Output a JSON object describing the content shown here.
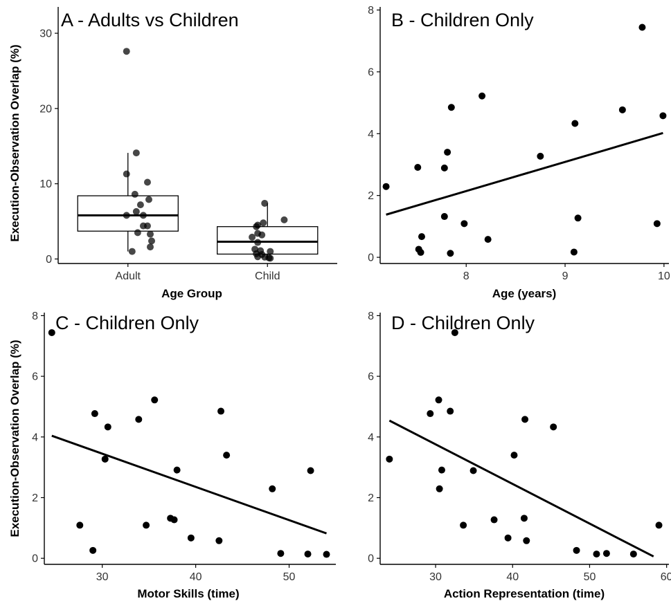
{
  "chart_data": [
    {
      "panel": "A",
      "type": "box",
      "title": "A - Adults vs Children",
      "xlabel": "Age Group",
      "ylabel": "Execution-Observation Overlap (%)",
      "categories": [
        "Adult",
        "Child"
      ],
      "ylim": [
        -0.6,
        33.5
      ],
      "yticks": [
        0,
        10,
        20,
        30
      ],
      "boxes": [
        {
          "category": "Adult",
          "q1": 3.7,
          "median": 5.8,
          "q3": 8.4,
          "whisker_low": 1.0,
          "whisker_high": 14.1
        },
        {
          "category": "Child",
          "q1": 0.65,
          "median": 2.3,
          "q3": 4.3,
          "whisker_low": 0.1,
          "whisker_high": 7.4
        }
      ],
      "points": [
        {
          "category": "Adult",
          "jitter": -0.01,
          "y": 27.6
        },
        {
          "category": "Adult",
          "jitter": 0.06,
          "y": 14.1
        },
        {
          "category": "Adult",
          "jitter": -0.01,
          "y": 11.3
        },
        {
          "category": "Adult",
          "jitter": 0.14,
          "y": 10.2
        },
        {
          "category": "Adult",
          "jitter": 0.05,
          "y": 8.6
        },
        {
          "category": "Adult",
          "jitter": 0.15,
          "y": 7.9
        },
        {
          "category": "Adult",
          "jitter": 0.09,
          "y": 7.2
        },
        {
          "category": "Adult",
          "jitter": 0.06,
          "y": 6.3
        },
        {
          "category": "Adult",
          "jitter": -0.01,
          "y": 5.8
        },
        {
          "category": "Adult",
          "jitter": 0.11,
          "y": 5.8
        },
        {
          "category": "Adult",
          "jitter": 0.11,
          "y": 4.4
        },
        {
          "category": "Adult",
          "jitter": 0.14,
          "y": 4.4
        },
        {
          "category": "Adult",
          "jitter": 0.07,
          "y": 3.5
        },
        {
          "category": "Adult",
          "jitter": 0.16,
          "y": 3.3
        },
        {
          "category": "Adult",
          "jitter": 0.17,
          "y": 2.4
        },
        {
          "category": "Adult",
          "jitter": 0.16,
          "y": 1.6
        },
        {
          "category": "Adult",
          "jitter": 0.03,
          "y": 1.0
        },
        {
          "category": "Child",
          "jitter": -0.02,
          "y": 7.4
        },
        {
          "category": "Child",
          "jitter": 0.12,
          "y": 5.2
        },
        {
          "category": "Child",
          "jitter": -0.03,
          "y": 4.8
        },
        {
          "category": "Child",
          "jitter": -0.07,
          "y": 4.5
        },
        {
          "category": "Child",
          "jitter": -0.08,
          "y": 4.3
        },
        {
          "category": "Child",
          "jitter": -0.07,
          "y": 3.4
        },
        {
          "category": "Child",
          "jitter": -0.04,
          "y": 3.2
        },
        {
          "category": "Child",
          "jitter": -0.11,
          "y": 2.9
        },
        {
          "category": "Child",
          "jitter": -0.07,
          "y": 2.2
        },
        {
          "category": "Child",
          "jitter": -0.09,
          "y": 1.3
        },
        {
          "category": "Child",
          "jitter": -0.05,
          "y": 1.1
        },
        {
          "category": "Child",
          "jitter": 0.02,
          "y": 1.0
        },
        {
          "category": "Child",
          "jitter": -0.08,
          "y": 0.7
        },
        {
          "category": "Child",
          "jitter": -0.04,
          "y": 0.6
        },
        {
          "category": "Child",
          "jitter": -0.07,
          "y": 0.3
        },
        {
          "category": "Child",
          "jitter": -0.02,
          "y": 0.25
        },
        {
          "category": "Child",
          "jitter": 0.01,
          "y": 0.15
        },
        {
          "category": "Child",
          "jitter": 0.02,
          "y": 0.1
        }
      ],
      "grid": false
    },
    {
      "panel": "B",
      "type": "scatter",
      "title": "B - Children Only",
      "xlabel": "Age (years)",
      "ylabel": "",
      "xlim": [
        7.13,
        10.05
      ],
      "ylim": [
        -0.2,
        8.1
      ],
      "xticks": [
        8,
        9,
        10
      ],
      "yticks": [
        0,
        2,
        4,
        6,
        8
      ],
      "points": [
        {
          "x": 9.78,
          "y": 7.44
        },
        {
          "x": 8.16,
          "y": 5.22
        },
        {
          "x": 7.85,
          "y": 4.85
        },
        {
          "x": 9.58,
          "y": 4.77
        },
        {
          "x": 9.99,
          "y": 4.58
        },
        {
          "x": 9.1,
          "y": 4.33
        },
        {
          "x": 7.81,
          "y": 3.4
        },
        {
          "x": 8.75,
          "y": 3.27
        },
        {
          "x": 7.51,
          "y": 2.91
        },
        {
          "x": 7.78,
          "y": 2.89
        },
        {
          "x": 7.19,
          "y": 2.29
        },
        {
          "x": 7.78,
          "y": 1.32
        },
        {
          "x": 9.13,
          "y": 1.27
        },
        {
          "x": 7.98,
          "y": 1.09
        },
        {
          "x": 9.93,
          "y": 1.09
        },
        {
          "x": 7.55,
          "y": 0.67
        },
        {
          "x": 8.22,
          "y": 0.58
        },
        {
          "x": 7.52,
          "y": 0.26
        },
        {
          "x": 7.54,
          "y": 0.16
        },
        {
          "x": 9.09,
          "y": 0.17
        },
        {
          "x": 7.84,
          "y": 0.13
        }
      ],
      "fit_line": {
        "x": [
          7.19,
          9.99
        ],
        "y": [
          1.38,
          4.02
        ]
      },
      "grid": false
    },
    {
      "panel": "C",
      "type": "scatter",
      "title": "C - Children Only",
      "xlabel": "Motor Skills (time)",
      "ylabel": "Execution-Observation Overlap (%)",
      "xlim": [
        23.8,
        55.0
      ],
      "ylim": [
        -0.2,
        8.1
      ],
      "xticks": [
        30,
        40,
        50
      ],
      "yticks": [
        0,
        2,
        4,
        6,
        8
      ],
      "points": [
        {
          "x": 24.6,
          "y": 7.44
        },
        {
          "x": 35.6,
          "y": 5.22
        },
        {
          "x": 42.7,
          "y": 4.85
        },
        {
          "x": 29.2,
          "y": 4.77
        },
        {
          "x": 33.9,
          "y": 4.58
        },
        {
          "x": 30.6,
          "y": 4.33
        },
        {
          "x": 43.3,
          "y": 3.4
        },
        {
          "x": 30.3,
          "y": 3.27
        },
        {
          "x": 52.3,
          "y": 2.89
        },
        {
          "x": 38.0,
          "y": 2.91
        },
        {
          "x": 48.2,
          "y": 2.29
        },
        {
          "x": 37.3,
          "y": 1.32
        },
        {
          "x": 37.7,
          "y": 1.27
        },
        {
          "x": 27.6,
          "y": 1.09
        },
        {
          "x": 34.7,
          "y": 1.09
        },
        {
          "x": 39.5,
          "y": 0.67
        },
        {
          "x": 42.5,
          "y": 0.58
        },
        {
          "x": 29.0,
          "y": 0.26
        },
        {
          "x": 49.1,
          "y": 0.16
        },
        {
          "x": 52.0,
          "y": 0.14
        },
        {
          "x": 54.0,
          "y": 0.13
        }
      ],
      "fit_line": {
        "x": [
          24.6,
          54.0
        ],
        "y": [
          4.04,
          0.82
        ]
      },
      "grid": false
    },
    {
      "panel": "D",
      "type": "scatter",
      "title": "D - Children Only",
      "xlabel": "Action Representation (time)",
      "ylabel": "",
      "xlim": [
        22.8,
        60.3
      ],
      "ylim": [
        -0.2,
        8.1
      ],
      "xticks": [
        30,
        40,
        50,
        60
      ],
      "yticks": [
        0,
        2,
        4,
        6,
        8
      ],
      "points": [
        {
          "x": 32.5,
          "y": 7.44
        },
        {
          "x": 30.4,
          "y": 5.22
        },
        {
          "x": 31.9,
          "y": 4.85
        },
        {
          "x": 29.3,
          "y": 4.77
        },
        {
          "x": 41.6,
          "y": 4.58
        },
        {
          "x": 45.3,
          "y": 4.33
        },
        {
          "x": 40.2,
          "y": 3.4
        },
        {
          "x": 24.0,
          "y": 3.27
        },
        {
          "x": 30.8,
          "y": 2.91
        },
        {
          "x": 34.9,
          "y": 2.89
        },
        {
          "x": 30.5,
          "y": 2.29
        },
        {
          "x": 41.5,
          "y": 1.32
        },
        {
          "x": 37.6,
          "y": 1.27
        },
        {
          "x": 33.6,
          "y": 1.09
        },
        {
          "x": 59.0,
          "y": 1.09
        },
        {
          "x": 39.4,
          "y": 0.67
        },
        {
          "x": 41.8,
          "y": 0.58
        },
        {
          "x": 48.3,
          "y": 0.26
        },
        {
          "x": 50.9,
          "y": 0.14
        },
        {
          "x": 52.2,
          "y": 0.16
        },
        {
          "x": 55.7,
          "y": 0.14
        }
      ],
      "fit_line": {
        "x": [
          24.0,
          58.3
        ],
        "y": [
          4.54,
          0.06
        ]
      },
      "grid": false
    }
  ]
}
